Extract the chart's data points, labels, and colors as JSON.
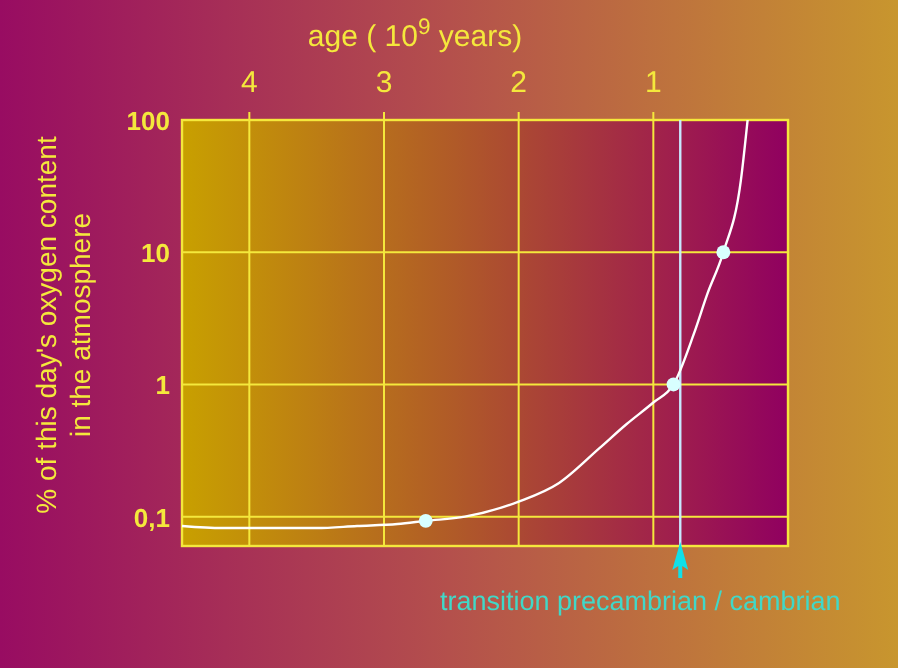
{
  "chart_data": {
    "type": "line",
    "xlabel": "age ( 10$^{9}$ years)",
    "ylabel": "% of this day's oxygen content\nin the atmosphere",
    "xlim": [
      4.5,
      0
    ],
    "xticks": [
      4,
      3,
      2,
      1
    ],
    "ylim": [
      0.06,
      100
    ],
    "yticks": [
      100,
      10,
      1,
      {
        "value": 0.1,
        "label": "0,1"
      }
    ],
    "log": "y",
    "grid": true,
    "series": [
      {
        "color": "#ffffff",
        "marker": "none",
        "x": [
          4.5,
          4.2,
          3.5,
          3.2,
          2.9,
          2.69,
          2.4,
          2.0,
          1.7,
          1.4,
          1.2,
          1.0,
          0.85,
          0.7,
          0.6,
          0.48,
          0.35,
          0.3
        ],
        "values": [
          0.085,
          0.082,
          0.082,
          0.085,
          0.088,
          0.093,
          0.1,
          0.13,
          0.18,
          0.33,
          0.5,
          0.73,
          1,
          2.4,
          4.8,
          10,
          35,
          100
        ]
      },
      {
        "type": "scatter",
        "color": "#d8ffff",
        "marker": "circle",
        "x": [
          2.69,
          0.85,
          0.48
        ],
        "values": [
          0.093,
          1,
          10
        ]
      }
    ],
    "ref_lines": [
      {
        "axis": "x",
        "value": 0.8,
        "label": "transition precambrian / cambrian",
        "color": "#c8e8ff"
      }
    ]
  }
}
